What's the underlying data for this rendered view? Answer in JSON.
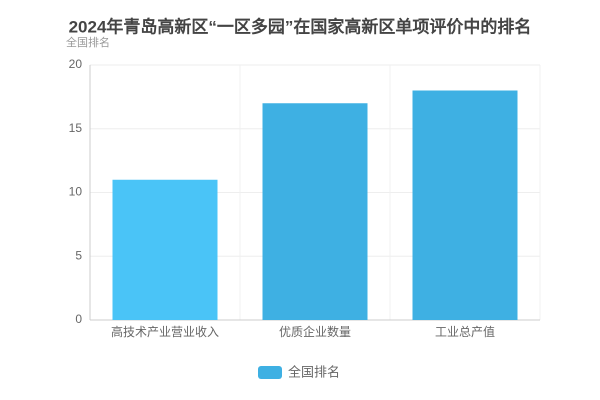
{
  "chart_data": {
    "type": "bar",
    "title": "2024年青岛高新区“一区多园”在国家高新区单项评价中的排名",
    "y_label": "全国排名",
    "categories": [
      "高技术产业营业收入",
      "优质企业数量",
      "工业总产值"
    ],
    "series": [
      {
        "name": "全国排名",
        "color": "#3eb0e3",
        "values": [
          11,
          17,
          18
        ],
        "colors": [
          "#4ac4f7",
          "#3eb0e3",
          "#3eb0e3"
        ]
      }
    ],
    "ylim": [
      0,
      20
    ],
    "yticks": [
      0,
      5,
      10,
      15,
      20
    ],
    "grid": true
  }
}
